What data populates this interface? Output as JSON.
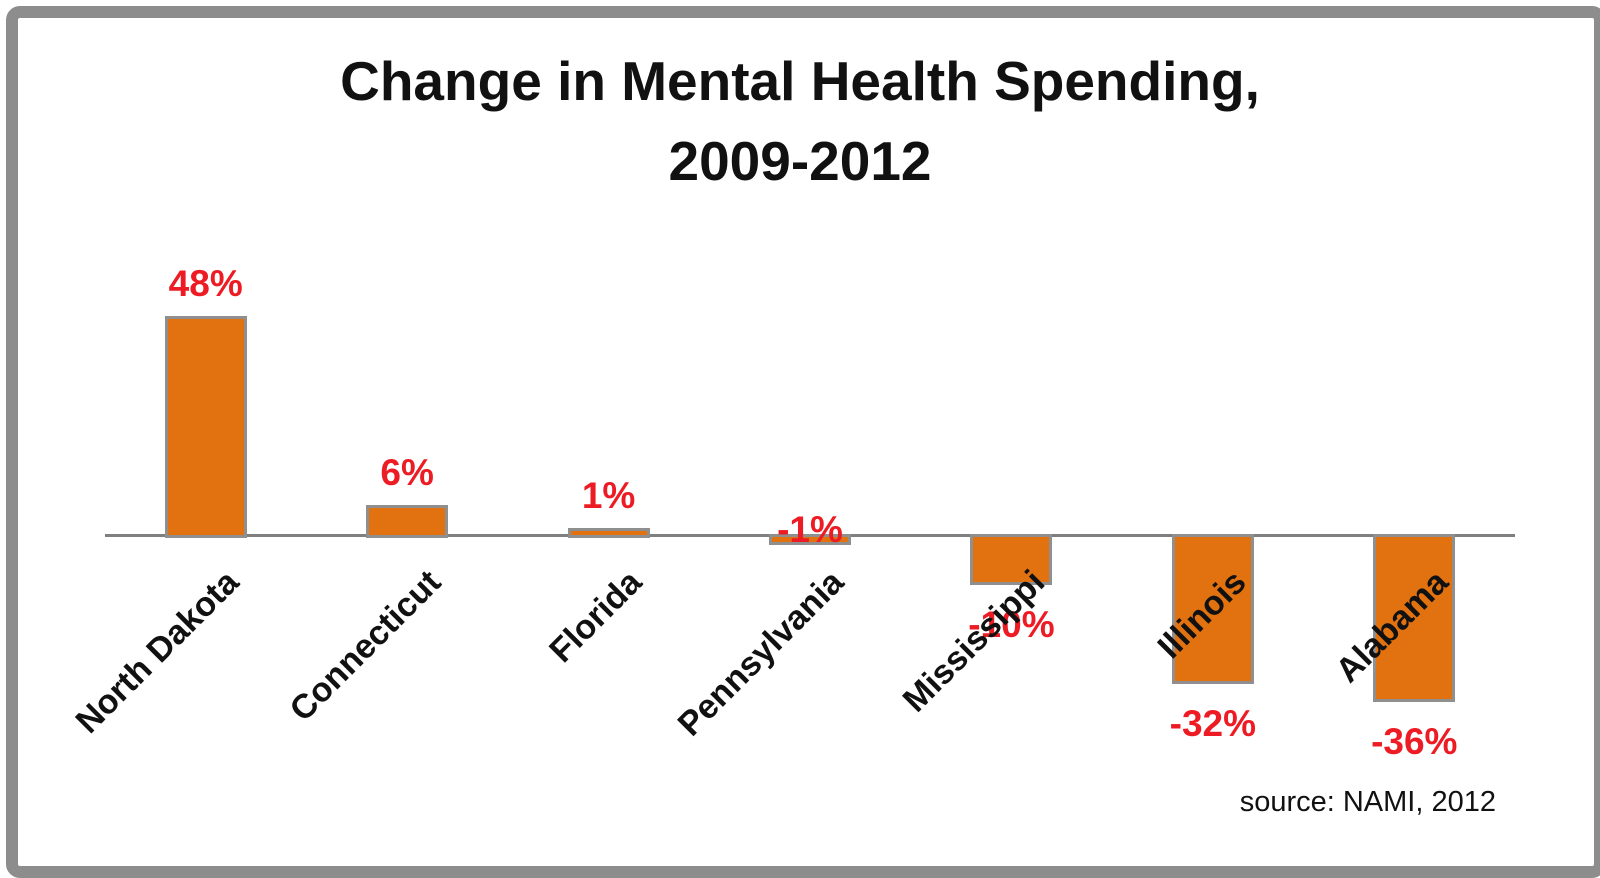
{
  "chart_data": {
    "type": "bar",
    "title": "Change in Mental Health Spending, 2009-2012",
    "title_lines": [
      "Change in Mental Health Spending,",
      "2009-2012"
    ],
    "categories": [
      "North Dakota",
      "Connecticut",
      "Florida",
      "Pennsylvania",
      "Mississippi",
      "Illinois",
      "Alabama"
    ],
    "values": [
      48,
      6,
      1,
      -1,
      -10,
      -32,
      -36
    ],
    "value_labels": [
      "48%",
      "6%",
      "1%",
      "-1%",
      "-10%",
      "-32%",
      "-36%"
    ],
    "xlabel": "",
    "ylabel": "",
    "ylim": [
      -40,
      50
    ],
    "grid": false,
    "legend": false,
    "bar_color": "#e1720f",
    "bar_border_color": "#8f8f8f",
    "value_label_color": "#ed1c24",
    "baseline_color": "#7f7f7f",
    "frame_border_color": "#8d8d8d"
  },
  "source": {
    "text": "source: NAMI, 2012"
  }
}
